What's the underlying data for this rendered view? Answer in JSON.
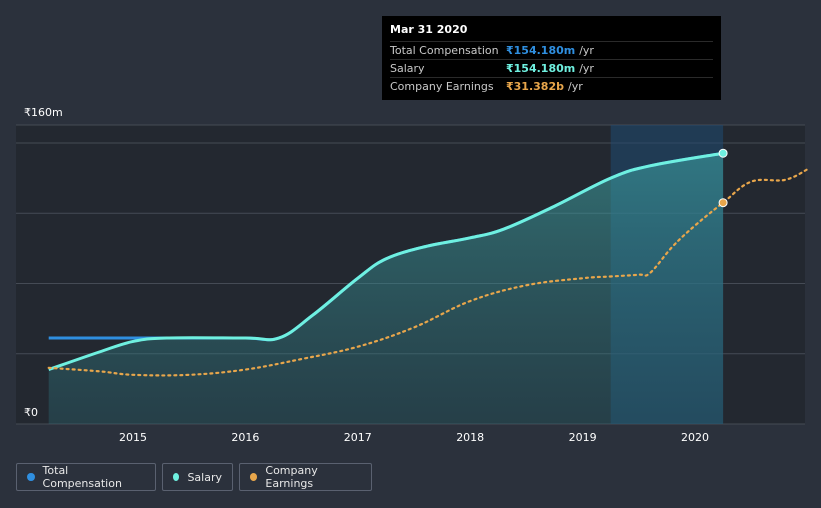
{
  "chart_data": {
    "type": "line",
    "y_unit_label_top": "₹160m",
    "y_unit_label_bottom": "₹0",
    "ylim": [
      0,
      160
    ],
    "xlim": [
      2014.25,
      2021.0
    ],
    "x_ticks": [
      "2015",
      "2016",
      "2017",
      "2018",
      "2019",
      "2020"
    ],
    "grid": true,
    "legend_position": "bottom-left",
    "highlight_range": [
      2019.25,
      2020.25
    ],
    "series": [
      {
        "name": "Total Compensation",
        "color": "#2f8fe0",
        "points": [
          [
            2014.25,
            49
          ],
          [
            2015.0,
            49
          ],
          [
            2015.5,
            49
          ],
          [
            2016.0,
            49
          ],
          [
            2016.3,
            49
          ],
          [
            2016.6,
            62
          ],
          [
            2017.0,
            83
          ],
          [
            2017.25,
            94
          ],
          [
            2017.6,
            101
          ],
          [
            2018.0,
            106
          ],
          [
            2018.3,
            111
          ],
          [
            2018.75,
            124
          ],
          [
            2019.25,
            140
          ],
          [
            2019.6,
            147
          ],
          [
            2020.25,
            154.18
          ]
        ]
      },
      {
        "name": "Salary",
        "color": "#6ff0e0",
        "points": [
          [
            2014.25,
            31
          ],
          [
            2014.7,
            41
          ],
          [
            2015.0,
            47
          ],
          [
            2015.3,
            49
          ],
          [
            2016.0,
            49
          ],
          [
            2016.3,
            49
          ],
          [
            2016.6,
            62
          ],
          [
            2017.0,
            83
          ],
          [
            2017.25,
            94
          ],
          [
            2017.6,
            101
          ],
          [
            2018.0,
            106
          ],
          [
            2018.3,
            111
          ],
          [
            2018.75,
            124
          ],
          [
            2019.25,
            140
          ],
          [
            2019.6,
            147
          ],
          [
            2020.25,
            154.18
          ]
        ]
      },
      {
        "name": "Company Earnings",
        "color": "#e8a64b",
        "points": [
          [
            2014.25,
            32
          ],
          [
            2014.7,
            30
          ],
          [
            2015.0,
            28
          ],
          [
            2015.5,
            28
          ],
          [
            2016.0,
            31
          ],
          [
            2016.5,
            37
          ],
          [
            2017.0,
            44
          ],
          [
            2017.5,
            55
          ],
          [
            2018.0,
            70
          ],
          [
            2018.5,
            79
          ],
          [
            2019.0,
            83
          ],
          [
            2019.25,
            84
          ],
          [
            2019.5,
            85
          ],
          [
            2019.6,
            86
          ],
          [
            2019.8,
            101
          ],
          [
            2020.0,
            113
          ],
          [
            2020.25,
            126
          ],
          [
            2020.5,
            138
          ],
          [
            2020.8,
            139
          ],
          [
            2021.0,
            145
          ]
        ]
      }
    ]
  },
  "tooltip": {
    "date": "Mar 31 2020",
    "rows": [
      {
        "label": "Total Compensation",
        "value": "₹154.180m",
        "unit": "/yr",
        "color": "#2f8fe0"
      },
      {
        "label": "Salary",
        "value": "₹154.180m",
        "unit": "/yr",
        "color": "#6ff0e0"
      },
      {
        "label": "Company Earnings",
        "value": "₹31.382b",
        "unit": "/yr",
        "color": "#e8a64b"
      }
    ]
  },
  "legend": {
    "items": [
      {
        "label": "Total Compensation",
        "color": "#2f8fe0"
      },
      {
        "label": "Salary",
        "color": "#6ff0e0"
      },
      {
        "label": "Company Earnings",
        "color": "#e8a64b"
      }
    ]
  },
  "colors": {
    "background": "#2b313c",
    "gridline": "#454b55"
  }
}
